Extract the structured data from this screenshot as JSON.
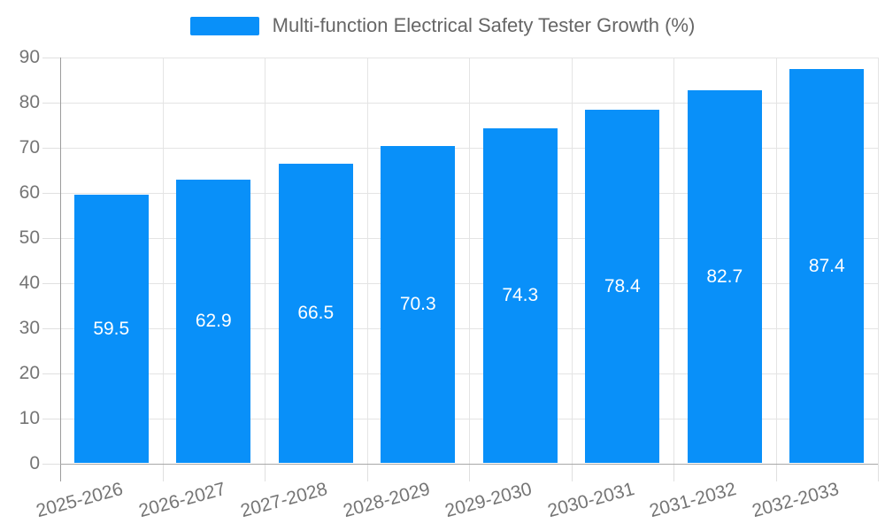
{
  "legend": {
    "label": "Multi-function Electrical Safety Tester Growth (%)",
    "swatch_color": "#0990f9",
    "position": "top"
  },
  "chart_data": {
    "type": "bar",
    "title": "Multi-function Electrical Safety Tester Growth (%)",
    "categories": [
      "2025-2026",
      "2026-2027",
      "2027-2028",
      "2028-2029",
      "2029-2030",
      "2030-2031",
      "2031-2032",
      "2032-2033"
    ],
    "values": [
      59.5,
      62.9,
      66.5,
      70.3,
      74.3,
      78.4,
      82.7,
      87.4
    ],
    "xlabel": "",
    "ylabel": "",
    "ylim": [
      0,
      90
    ],
    "yticks": [
      0,
      10,
      20,
      30,
      40,
      50,
      60,
      70,
      80,
      90
    ],
    "grid": true,
    "legend_position": "top",
    "bar_color": "#0990f9",
    "value_label_color": "#ffffff",
    "axis_label_color": "#757575",
    "grid_color": "#e4e4e4",
    "axis_line_color": "#9c9c9c"
  }
}
